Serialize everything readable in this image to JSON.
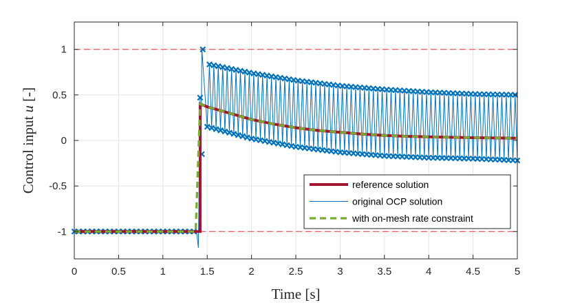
{
  "chart_data": {
    "type": "line",
    "xlabel": "Time [s]",
    "ylabel_prefix": "Control input ",
    "ylabel_var": "u",
    "ylabel_suffix": " [-]",
    "xlim": [
      0,
      5
    ],
    "ylim": [
      -1.3,
      1.3
    ],
    "xticks": [
      0,
      0.5,
      1,
      1.5,
      2,
      2.5,
      3,
      3.5,
      4,
      4.5,
      5
    ],
    "xtick_labels": [
      "0",
      "0.5",
      "1",
      "1.5",
      "2",
      "2.5",
      "3",
      "3.5",
      "4",
      "4.5",
      "5"
    ],
    "yticks": [
      -1,
      -0.5,
      0,
      0.5,
      1
    ],
    "ytick_labels": [
      "-1",
      "-0.5",
      "0",
      "0.5",
      "1"
    ],
    "grid": true,
    "constraint_lines": {
      "values": [
        1,
        -1
      ],
      "color": "#e8393a",
      "style": "dashed"
    },
    "series": [
      {
        "name": "reference solution",
        "color": "#a2142f",
        "style": "solid",
        "x": [
          0,
          1.42,
          1.42,
          1.5,
          1.75,
          2.0,
          2.25,
          2.5,
          2.75,
          3.0,
          3.25,
          3.5,
          3.75,
          4.0,
          4.25,
          4.5,
          4.75,
          5.0
        ],
        "y": [
          -1,
          -1,
          0.4,
          0.37,
          0.3,
          0.23,
          0.18,
          0.14,
          0.11,
          0.09,
          0.07,
          0.055,
          0.045,
          0.04,
          0.035,
          0.03,
          0.027,
          0.025
        ]
      },
      {
        "name": "original OCP solution",
        "color": "#0072bd",
        "style": "thin-oscillating",
        "marker": "x",
        "x_start": 1.45,
        "x_end": 5.0,
        "period": 0.05,
        "upper_envelope": {
          "x": [
            1.45,
            1.5,
            2.0,
            2.5,
            3.0,
            3.5,
            4.0,
            4.5,
            5.0
          ],
          "y": [
            1.0,
            0.84,
            0.74,
            0.66,
            0.6,
            0.56,
            0.53,
            0.51,
            0.5
          ]
        },
        "lower_envelope": {
          "x": [
            1.45,
            1.5,
            2.0,
            2.5,
            3.0,
            3.5,
            4.0,
            4.5,
            5.0
          ],
          "y": [
            -0.17,
            0.15,
            0.02,
            -0.07,
            -0.13,
            -0.17,
            -0.19,
            -0.2,
            -0.22
          ]
        },
        "pre_transition": {
          "x": [
            0,
            1.38,
            1.4,
            1.42,
            1.43,
            1.44
          ],
          "y": [
            -1,
            -1,
            -1.18,
            0.47,
            -0.15,
            1.0
          ]
        }
      },
      {
        "name": "with on-mesh rate constraint",
        "color": "#77ac30",
        "style": "dashed",
        "x": [
          0,
          1.37,
          1.42,
          1.5,
          1.75,
          2.0,
          2.25,
          2.5,
          2.75,
          3.0,
          3.25,
          3.5,
          3.75,
          4.0,
          4.25,
          4.5,
          4.75,
          5.0
        ],
        "y": [
          -1,
          -1,
          0.4,
          0.37,
          0.3,
          0.23,
          0.18,
          0.14,
          0.11,
          0.09,
          0.07,
          0.055,
          0.045,
          0.04,
          0.035,
          0.03,
          0.027,
          0.025
        ]
      }
    ],
    "legend_position": "lower-right"
  }
}
